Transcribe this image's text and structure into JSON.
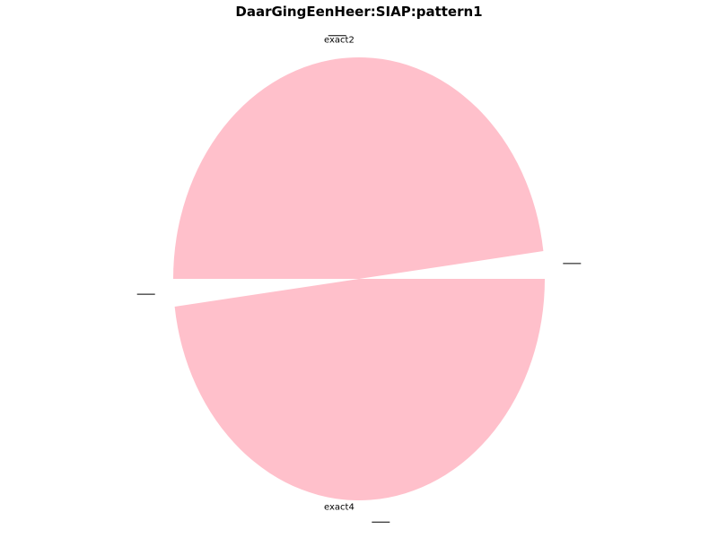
{
  "chart_data": {
    "type": "pie",
    "title": "DaarGingEenHeer:SIAP:pattern1",
    "slices": [
      {
        "label": "",
        "value": 2,
        "color": "#ffffff"
      },
      {
        "label": "exact2",
        "value": 48,
        "color": "#ffc0cb"
      },
      {
        "label": "",
        "value": 2,
        "color": "#ffffff"
      },
      {
        "label": "exact4",
        "value": 48,
        "color": "#ffc0cb"
      }
    ],
    "legend": "none"
  }
}
